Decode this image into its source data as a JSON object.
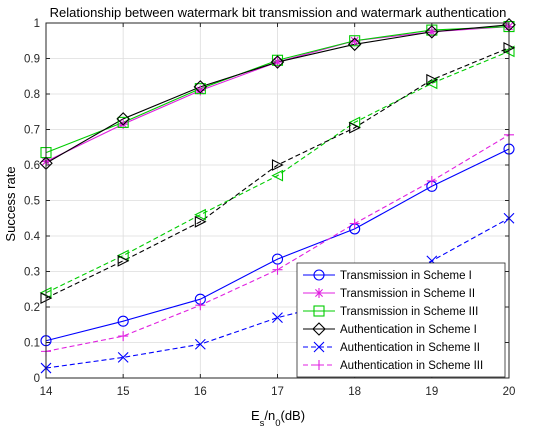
{
  "chart_data": {
    "type": "line",
    "title": "Relationship between watermark bit transmission and watermark authentication",
    "xlabel": "Es/n0(dB)",
    "xlabel_parts": {
      "main": "E",
      "sub1": "s",
      "sep": "/n",
      "sub2": "0",
      "tail": "(dB)"
    },
    "ylabel": "Success rate",
    "xlim": [
      14,
      20
    ],
    "ylim": [
      0,
      1
    ],
    "x_ticks": [
      "14",
      "15",
      "16",
      "17",
      "18",
      "19",
      "20"
    ],
    "y_ticks": [
      "0",
      "0.1",
      "0.2",
      "0.3",
      "0.4",
      "0.5",
      "0.6",
      "0.7",
      "0.8",
      "0.9",
      "1"
    ],
    "grid": true,
    "legend_position": "bottom-right",
    "x": [
      14,
      15,
      16,
      17,
      18,
      19,
      20
    ],
    "series": [
      {
        "name": "Transmission in Scheme I",
        "color": "#0000ff",
        "dash": "solid",
        "marker": "circle",
        "values": [
          0.105,
          0.16,
          0.222,
          0.335,
          0.42,
          0.54,
          0.645
        ]
      },
      {
        "name": "Transmission in Scheme II",
        "color": "#e020e0",
        "dash": "solid",
        "marker": "star",
        "values": [
          0.61,
          0.715,
          0.81,
          0.89,
          0.95,
          0.975,
          0.99
        ]
      },
      {
        "name": "Transmission in Scheme III",
        "color": "#00cc00",
        "dash": "solid",
        "marker": "square",
        "values": [
          0.635,
          0.72,
          0.815,
          0.895,
          0.95,
          0.98,
          0.99
        ]
      },
      {
        "name": "Authentication in Scheme I",
        "color": "#000000",
        "dash": "solid",
        "marker": "diamond",
        "values": [
          0.605,
          0.73,
          0.82,
          0.89,
          0.94,
          0.975,
          0.995
        ]
      },
      {
        "name": "Authentication in Scheme II",
        "color": "#0000ff",
        "dash": "dashed",
        "marker": "x",
        "values": [
          0.028,
          0.058,
          0.095,
          0.17,
          0.225,
          0.33,
          0.45
        ]
      },
      {
        "name": "Authentication in Scheme III",
        "color": "#e020e0",
        "dash": "dashed",
        "marker": "plus",
        "values": [
          0.075,
          0.118,
          0.205,
          0.305,
          0.435,
          0.555,
          0.685
        ]
      },
      {
        "name": "",
        "color": "#00cc00",
        "dash": "dashed",
        "marker": "triangle-left",
        "values": [
          0.24,
          0.345,
          0.46,
          0.57,
          0.72,
          0.83,
          0.92
        ]
      },
      {
        "name": "",
        "color": "#000000",
        "dash": "dashed",
        "marker": "triangle-right",
        "values": [
          0.225,
          0.33,
          0.44,
          0.6,
          0.705,
          0.84,
          0.93
        ]
      }
    ]
  }
}
